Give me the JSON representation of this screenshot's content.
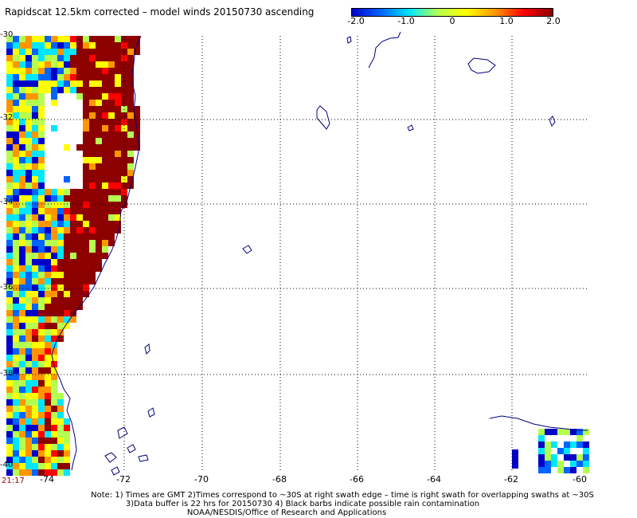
{
  "title": "Rapidscat 12.5km corrected – model winds 20150730 ascending",
  "colorbar": {
    "labels": [
      "-2.0",
      "-1.0",
      "0",
      "1.0",
      "2.0"
    ],
    "values": [
      -2,
      -1,
      0,
      1,
      2
    ],
    "range": [
      -2,
      2
    ],
    "colors": [
      "#0000c8",
      "#0064ff",
      "#00e6ff",
      "#b4ff50",
      "#ffff00",
      "#ff9600",
      "#ff0000",
      "#8c0000"
    ]
  },
  "axes": {
    "lon_range": [
      -74.5,
      -60
    ],
    "lat_range": [
      -40,
      -30
    ],
    "x_ticks": [
      -74,
      -72,
      -70,
      -68,
      -66,
      -64,
      -62,
      -60
    ],
    "x_tick_labels": [
      "-74",
      "-72",
      "-70",
      "-68",
      "-66",
      "-64",
      "-62",
      "-60"
    ],
    "y_ticks": [
      -30,
      -32,
      -34,
      -36,
      -38,
      -40
    ],
    "y_tick_labels": [
      "-30",
      "-32",
      "-34",
      "-36",
      "-38",
      "-40"
    ],
    "grid": true
  },
  "timestamp": "21:17",
  "notes": [
    "Note: 1) Times are GMT 2)Times correspond to ~30S at right swath edge – time is right swath for overlapping swaths at ~30S",
    "3)Data buffer is 22 hrs for 20150730 4) Black barbs indicate possible rain contamination",
    "NOAA/NESDIS/Office of Research and Applications"
  ],
  "coast_color": "#000080"
}
